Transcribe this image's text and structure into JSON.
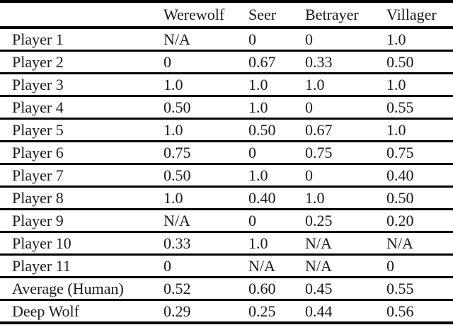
{
  "colors": {
    "background": "#ffffff",
    "text": "#1b1b1b",
    "rule": "#000000"
  },
  "chart_data": {
    "type": "table",
    "columns": [
      "",
      "Werewolf",
      "Seer",
      "Betrayer",
      "Villager"
    ],
    "rows": [
      {
        "label": "Player 1",
        "values": [
          "N/A",
          "0",
          "0",
          "1.0"
        ]
      },
      {
        "label": "Player 2",
        "values": [
          "0",
          "0.67",
          "0.33",
          "0.50"
        ]
      },
      {
        "label": "Player 3",
        "values": [
          "1.0",
          "1.0",
          "1.0",
          "1.0"
        ]
      },
      {
        "label": "Player 4",
        "values": [
          "0.50",
          "1.0",
          "0",
          "0.55"
        ]
      },
      {
        "label": "Player 5",
        "values": [
          "1.0",
          "0.50",
          "0.67",
          "1.0"
        ]
      },
      {
        "label": "Player 6",
        "values": [
          "0.75",
          "0",
          "0.75",
          "0.75"
        ]
      },
      {
        "label": "Player 7",
        "values": [
          "0.50",
          "1.0",
          "0",
          "0.40"
        ]
      },
      {
        "label": "Player 8",
        "values": [
          "1.0",
          "0.40",
          "1.0",
          "0.50"
        ]
      },
      {
        "label": "Player 9",
        "values": [
          "N/A",
          "0",
          "0.25",
          "0.20"
        ]
      },
      {
        "label": "Player 10",
        "values": [
          "0.33",
          "1.0",
          "N/A",
          "N/A"
        ]
      },
      {
        "label": "Player 11",
        "values": [
          "0",
          "N/A",
          "N/A",
          "0"
        ]
      },
      {
        "label": "Average (Human)",
        "values": [
          "0.52",
          "0.60",
          "0.45",
          "0.55"
        ]
      },
      {
        "label": "Deep Wolf",
        "values": [
          "0.29",
          "0.25",
          "0.44",
          "0.56"
        ]
      }
    ]
  }
}
